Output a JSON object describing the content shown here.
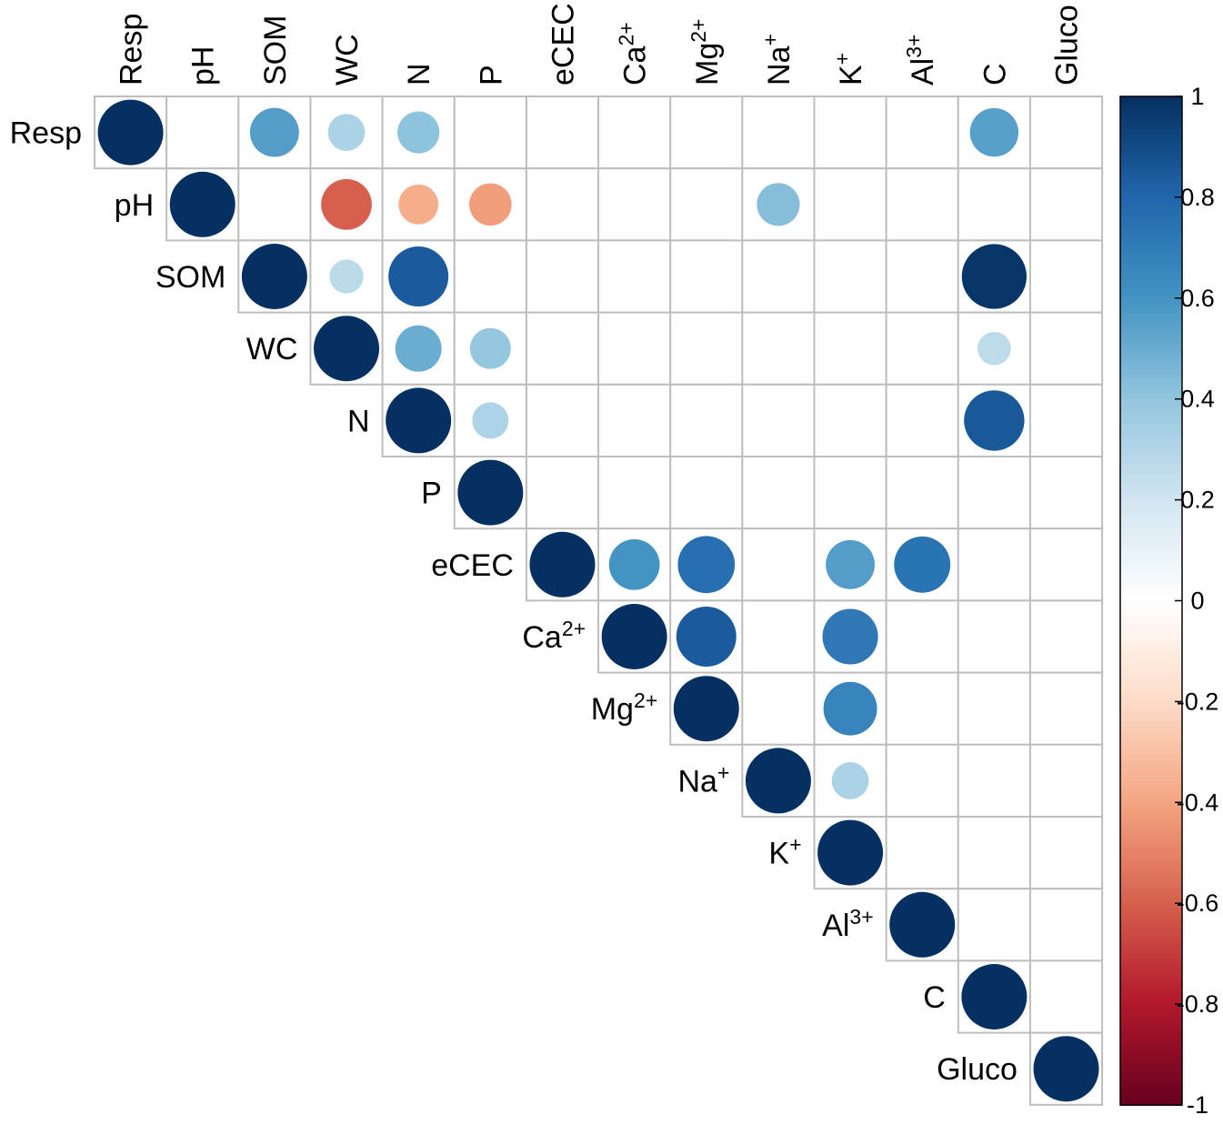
{
  "chart_data": {
    "type": "heatmap",
    "style": "corrplot upper triangle, circles (area proportional to |r|), colour scale RdBu",
    "variables": [
      {
        "base": "Resp",
        "sup": ""
      },
      {
        "base": "pH",
        "sup": ""
      },
      {
        "base": "SOM",
        "sup": ""
      },
      {
        "base": "WC",
        "sup": ""
      },
      {
        "base": "N",
        "sup": ""
      },
      {
        "base": "P",
        "sup": ""
      },
      {
        "base": "eCEC",
        "sup": ""
      },
      {
        "base": "Ca",
        "sup": "2+"
      },
      {
        "base": "Mg",
        "sup": "2+"
      },
      {
        "base": "Na",
        "sup": "+"
      },
      {
        "base": "K",
        "sup": "+"
      },
      {
        "base": "Al",
        "sup": "3+"
      },
      {
        "base": "C",
        "sup": ""
      },
      {
        "base": "Gluco",
        "sup": ""
      }
    ],
    "correlations": [
      {
        "row": "Resp",
        "col": "SOM",
        "r": 0.56
      },
      {
        "row": "Resp",
        "col": "WC",
        "r": 0.32
      },
      {
        "row": "Resp",
        "col": "N",
        "r": 0.41
      },
      {
        "row": "Resp",
        "col": "C",
        "r": 0.55
      },
      {
        "row": "pH",
        "col": "WC",
        "r": -0.6
      },
      {
        "row": "pH",
        "col": "N",
        "r": -0.37
      },
      {
        "row": "pH",
        "col": "P",
        "r": -0.42
      },
      {
        "row": "pH",
        "col": "Na",
        "r": 0.43
      },
      {
        "row": "SOM",
        "col": "WC",
        "r": 0.27
      },
      {
        "row": "SOM",
        "col": "N",
        "r": 0.84
      },
      {
        "row": "SOM",
        "col": "C",
        "r": 0.98
      },
      {
        "row": "WC",
        "col": "N",
        "r": 0.5
      },
      {
        "row": "WC",
        "col": "P",
        "r": 0.39
      },
      {
        "row": "WC",
        "col": "C",
        "r": 0.26
      },
      {
        "row": "N",
        "col": "P",
        "r": 0.31
      },
      {
        "row": "N",
        "col": "C",
        "r": 0.85
      },
      {
        "row": "eCEC",
        "col": "Ca",
        "r": 0.6
      },
      {
        "row": "eCEC",
        "col": "Mg",
        "r": 0.76
      },
      {
        "row": "eCEC",
        "col": "K",
        "r": 0.56
      },
      {
        "row": "eCEC",
        "col": "Al",
        "r": 0.74
      },
      {
        "row": "Ca",
        "col": "Mg",
        "r": 0.84
      },
      {
        "row": "Ca",
        "col": "K",
        "r": 0.72
      },
      {
        "row": "Mg",
        "col": "K",
        "r": 0.67
      },
      {
        "row": "Na",
        "col": "K",
        "r": 0.32
      }
    ],
    "diagonal_value": 1,
    "colorbar": {
      "range": [
        -1,
        1
      ],
      "ticks": [
        "1",
        "0.8",
        "0.6",
        "0.4",
        "0.2",
        "0",
        "-0.2",
        "-0.4",
        "-0.6",
        "-0.8",
        "-1"
      ],
      "palette": [
        "#67001F",
        "#B2182B",
        "#D6604D",
        "#F4A582",
        "#FDDBC7",
        "#FFFFFF",
        "#D1E5F0",
        "#92C5DE",
        "#4393C3",
        "#2166AC",
        "#053061"
      ]
    },
    "grid_color": "#BEBEBE"
  }
}
